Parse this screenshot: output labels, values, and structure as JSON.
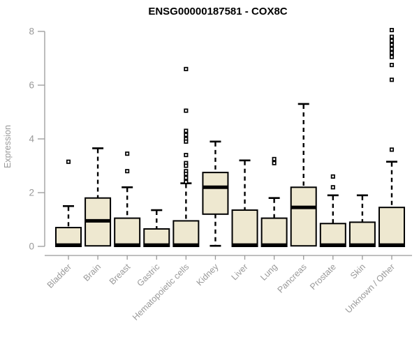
{
  "colors": {
    "background": "#FFFFFF",
    "box_fill": "#EEE8D0",
    "box_stroke": "#000000",
    "median": "#000000",
    "whisker": "#000000",
    "axis": "#999999",
    "axis_text": "#999999",
    "title_text": "#000000"
  },
  "chart_data": {
    "type": "boxplot",
    "title": "ENSG00000187581 - COX8C",
    "xlabel": "",
    "ylabel": "Expression",
    "ylim": [
      0,
      8
    ],
    "yticks": [
      0,
      2,
      4,
      6,
      8
    ],
    "grid": false,
    "legend": false,
    "categories": [
      "Bladder",
      "Brain",
      "Breast",
      "Gastric",
      "Hematopoietic cells",
      "Kidney",
      "Liver",
      "Lung",
      "Pancreas",
      "Prostate",
      "Skin",
      "Unknown / Other"
    ],
    "boxes": [
      {
        "category": "Bladder",
        "low": 0,
        "q1": 0,
        "median": 0.05,
        "q3": 0.7,
        "high": 1.5,
        "outliers": [
          3.15
        ]
      },
      {
        "category": "Brain",
        "low": 0,
        "q1": 0.02,
        "median": 0.95,
        "q3": 1.8,
        "high": 3.65,
        "outliers": []
      },
      {
        "category": "Breast",
        "low": 0,
        "q1": 0,
        "median": 0.05,
        "q3": 1.05,
        "high": 2.2,
        "outliers": [
          3.45,
          2.8
        ]
      },
      {
        "category": "Gastric",
        "low": 0,
        "q1": 0,
        "median": 0.05,
        "q3": 0.65,
        "high": 1.35,
        "outliers": []
      },
      {
        "category": "Hematopoietic cells",
        "low": 0,
        "q1": 0,
        "median": 0.05,
        "q3": 0.95,
        "high": 2.35,
        "outliers": [
          6.6,
          5.05,
          4.3,
          4.15,
          4.0,
          3.9,
          3.4,
          3.1,
          3.0,
          2.8,
          2.7,
          2.55,
          2.4
        ]
      },
      {
        "category": "Kidney",
        "low": 0.02,
        "q1": 1.2,
        "median": 2.2,
        "q3": 2.75,
        "high": 3.9,
        "outliers": []
      },
      {
        "category": "Liver",
        "low": 0,
        "q1": 0,
        "median": 0.05,
        "q3": 1.35,
        "high": 3.2,
        "outliers": []
      },
      {
        "category": "Lung",
        "low": 0,
        "q1": 0,
        "median": 0.05,
        "q3": 1.05,
        "high": 1.8,
        "outliers": [
          3.25,
          3.1
        ]
      },
      {
        "category": "Pancreas",
        "low": 0,
        "q1": 0.02,
        "median": 1.45,
        "q3": 2.2,
        "high": 5.3,
        "outliers": []
      },
      {
        "category": "Prostate",
        "low": 0,
        "q1": 0,
        "median": 0.05,
        "q3": 0.85,
        "high": 1.9,
        "outliers": [
          2.6,
          2.2
        ]
      },
      {
        "category": "Skin",
        "low": 0,
        "q1": 0,
        "median": 0.05,
        "q3": 0.9,
        "high": 1.9,
        "outliers": []
      },
      {
        "category": "Unknown / Other",
        "low": 0,
        "q1": 0,
        "median": 0.05,
        "q3": 1.45,
        "high": 3.15,
        "outliers": [
          8.05,
          7.8,
          7.65,
          7.5,
          7.35,
          7.2,
          7.05,
          6.75,
          6.2,
          3.6
        ]
      }
    ]
  }
}
